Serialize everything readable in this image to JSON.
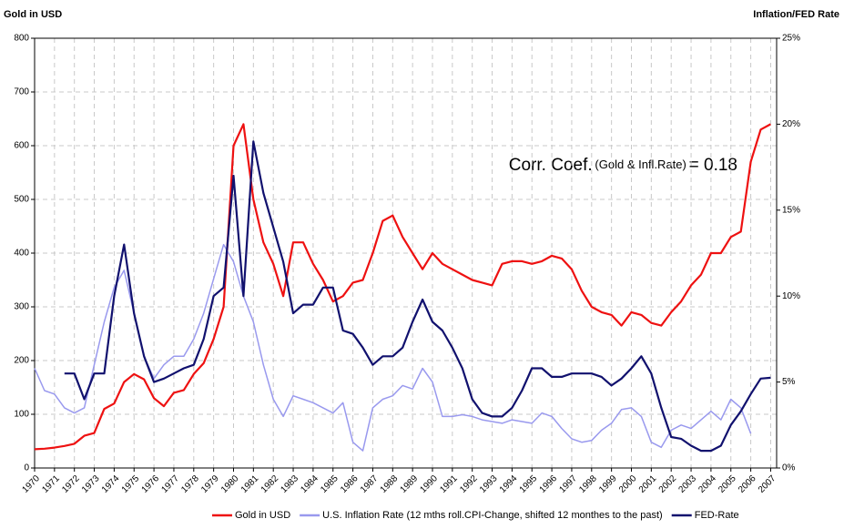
{
  "chart_data": {
    "type": "line",
    "ylabel": "Gold in USD",
    "y2label": "Inflation/FED Rate",
    "annotation": {
      "main": "Corr. Coef.",
      "detail": "(Gold & Infl.Rate)",
      "result": "= 0.18"
    },
    "x": [
      1970,
      1970.5,
      1971,
      1971.5,
      1972,
      1972.5,
      1973,
      1973.5,
      1974,
      1974.5,
      1975,
      1975.5,
      1976,
      1976.5,
      1977,
      1977.5,
      1978,
      1978.5,
      1979,
      1979.5,
      1980,
      1980.5,
      1981,
      1981.5,
      1982,
      1982.5,
      1983,
      1983.5,
      1984,
      1984.5,
      1985,
      1985.5,
      1986,
      1986.5,
      1987,
      1987.5,
      1988,
      1988.5,
      1989,
      1989.5,
      1990,
      1990.5,
      1991,
      1991.5,
      1992,
      1992.5,
      1993,
      1993.5,
      1994,
      1994.5,
      1995,
      1995.5,
      1996,
      1996.5,
      1997,
      1997.5,
      1998,
      1998.5,
      1999,
      1999.5,
      2000,
      2000.5,
      2001,
      2001.5,
      2002,
      2002.5,
      2003,
      2003.5,
      2004,
      2004.5,
      2005,
      2005.5,
      2006,
      2006.5,
      2007
    ],
    "series": [
      {
        "name": "Gold in USD",
        "color": "#ee1111",
        "axis": "y",
        "values": [
          35,
          36,
          38,
          41,
          45,
          60,
          65,
          110,
          120,
          160,
          175,
          165,
          130,
          115,
          140,
          145,
          175,
          195,
          240,
          300,
          600,
          640,
          500,
          420,
          380,
          320,
          420,
          420,
          380,
          350,
          310,
          320,
          345,
          350,
          400,
          460,
          470,
          430,
          400,
          370,
          400,
          380,
          370,
          360,
          350,
          345,
          340,
          380,
          385,
          385,
          380,
          385,
          395,
          390,
          370,
          330,
          300,
          290,
          285,
          265,
          290,
          285,
          270,
          265,
          290,
          310,
          340,
          360,
          400,
          400,
          430,
          440,
          570,
          630,
          640
        ]
      },
      {
        "name": "U.S. Inflation Rate (12 mths roll.CPI-Change, shifted 12 monthes to the past)",
        "color": "#9999ee",
        "axis": "y2",
        "values": [
          5.8,
          4.5,
          4.3,
          3.5,
          3.2,
          3.5,
          6,
          8.5,
          10.5,
          11.5,
          9,
          6.5,
          5.2,
          6,
          6.5,
          6.5,
          7.5,
          9,
          11,
          13,
          12,
          10,
          8.5,
          6,
          4,
          3,
          4.2,
          4,
          3.8,
          3.5,
          3.2,
          3.8,
          1.5,
          1,
          3.5,
          4,
          4.2,
          4.8,
          4.6,
          5.8,
          5,
          3,
          3,
          3.1,
          3,
          2.8,
          2.7,
          2.6,
          2.8,
          2.7,
          2.6,
          3.2,
          3,
          2.3,
          1.7,
          1.5,
          1.6,
          2.2,
          2.6,
          3.4,
          3.5,
          3,
          1.5,
          1.2,
          2.2,
          2.5,
          2.3,
          2.8,
          3.3,
          2.8,
          4,
          3.5,
          2,
          null,
          null
        ]
      },
      {
        "name": "FED-Rate",
        "color": "#11116e",
        "axis": "y2",
        "values": [
          null,
          null,
          null,
          5.5,
          5.5,
          4,
          5.5,
          5.5,
          10,
          13,
          9,
          6.5,
          5,
          5.2,
          5.5,
          5.8,
          6,
          7.5,
          10,
          10.5,
          17,
          10,
          19,
          16,
          14,
          12,
          9,
          9.5,
          9.5,
          10.5,
          10.5,
          8,
          7.8,
          7,
          6,
          6.5,
          6.5,
          7,
          8.5,
          9.8,
          8.5,
          8,
          7,
          5.8,
          4,
          3.2,
          3,
          3,
          3.5,
          4.5,
          5.8,
          5.8,
          5.3,
          5.3,
          5.5,
          5.5,
          5.5,
          5.3,
          4.8,
          5.2,
          5.8,
          6.5,
          5.5,
          3.5,
          1.8,
          1.7,
          1.3,
          1,
          1,
          1.3,
          2.5,
          3.3,
          4.3,
          5.2,
          5.25
        ]
      }
    ],
    "xlim": [
      1970,
      2007.3
    ],
    "xticks": [
      1970,
      1971,
      1972,
      1973,
      1974,
      1975,
      1976,
      1977,
      1978,
      1979,
      1980,
      1981,
      1982,
      1983,
      1984,
      1985,
      1986,
      1987,
      1988,
      1989,
      1990,
      1991,
      1992,
      1993,
      1994,
      1995,
      1996,
      1997,
      1998,
      1999,
      2000,
      2001,
      2002,
      2003,
      2004,
      2005,
      2006,
      2007
    ],
    "ylim": [
      0,
      800
    ],
    "yticks": [
      0,
      100,
      200,
      300,
      400,
      500,
      600,
      700,
      800
    ],
    "y2lim": [
      0,
      25
    ],
    "y2ticks": [
      {
        "value": 0,
        "label": "0%"
      },
      {
        "value": 5,
        "label": "5%"
      },
      {
        "value": 10,
        "label": "10%"
      },
      {
        "value": 15,
        "label": "15%"
      },
      {
        "value": 20,
        "label": "20%"
      },
      {
        "value": 25,
        "label": "25%"
      }
    ],
    "grid": true,
    "legend": "bottom"
  }
}
